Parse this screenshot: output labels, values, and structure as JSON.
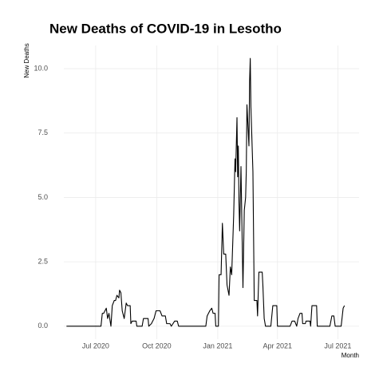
{
  "chart_data": {
    "type": "line",
    "title": "New Deaths of COVID-19 in Lesotho",
    "x_label": "Month",
    "y_label": "New Deaths",
    "x": [
      -44,
      8,
      10,
      12,
      16,
      18,
      20,
      23,
      25,
      28,
      30,
      32,
      35,
      36,
      38,
      40,
      43,
      46,
      48,
      52,
      53,
      55,
      61,
      62,
      70,
      72,
      79,
      80,
      84,
      88,
      91,
      97,
      100,
      105,
      107,
      112,
      114,
      119,
      123,
      125,
      166,
      168,
      172,
      175,
      177,
      180,
      181,
      185,
      186,
      189,
      191,
      193,
      196,
      198,
      201,
      203,
      205,
      208,
      210,
      211,
      213,
      214,
      215,
      216,
      217,
      219,
      220,
      222,
      224,
      226,
      227,
      228,
      231,
      232,
      233,
      234,
      237,
      238,
      239,
      243,
      244,
      246,
      251,
      252,
      254,
      256,
      264,
      267,
      273,
      274,
      293,
      296,
      300,
      303,
      305,
      308,
      311,
      312,
      316,
      317,
      323,
      324,
      326,
      333,
      334,
      353,
      356,
      359,
      361,
      370,
      373,
      375
    ],
    "series": [
      {
        "name": "New Deaths",
        "color": "#000000",
        "values": [
          0,
          0,
          0.5,
          0.5,
          0.7,
          0.3,
          0.5,
          0,
          0.8,
          1,
          1,
          1.2,
          1.1,
          1.4,
          1.3,
          0.6,
          0.3,
          0.9,
          0.8,
          0.8,
          0.1,
          0.2,
          0.2,
          0,
          0,
          0.3,
          0.3,
          0,
          0.1,
          0.3,
          0.6,
          0.6,
          0.4,
          0.4,
          0.1,
          0.1,
          0,
          0.2,
          0.2,
          0,
          0,
          0.4,
          0.6,
          0.7,
          0.5,
          0.5,
          0,
          0,
          2,
          2,
          4,
          2.8,
          2.8,
          1.6,
          1.2,
          2.3,
          2,
          4.3,
          6.5,
          6,
          8.1,
          5.8,
          7,
          4.8,
          3.7,
          6.2,
          4.6,
          1.5,
          4.5,
          5,
          6,
          8.6,
          7,
          9.5,
          10.4,
          8.5,
          6,
          3.5,
          1,
          1,
          0.4,
          2.1,
          2.1,
          1.6,
          0.3,
          0,
          0,
          0.8,
          0.8,
          0,
          0,
          0.2,
          0.2,
          0,
          0.3,
          0.5,
          0.5,
          0.1,
          0.1,
          0.2,
          0.2,
          0,
          0.8,
          0.8,
          0,
          0,
          0.4,
          0.4,
          0,
          0,
          0.7,
          0.8
        ]
      }
    ],
    "xlim": [
      -48,
      397
    ],
    "xticks": [
      {
        "value": 0,
        "label": "Jul 2020"
      },
      {
        "value": 92,
        "label": "Oct 2020"
      },
      {
        "value": 184,
        "label": "Jan 2021"
      },
      {
        "value": 274,
        "label": "Apr 2021"
      },
      {
        "value": 365,
        "label": "Jul 2021"
      }
    ],
    "ylim": [
      -0.5,
      10.9
    ],
    "yticks": [
      {
        "value": 0,
        "label": "0.0"
      },
      2.5,
      {
        "value": 5,
        "label": "5.0"
      },
      7.5,
      {
        "value": 10,
        "label": "10.0"
      }
    ],
    "grid": true
  }
}
